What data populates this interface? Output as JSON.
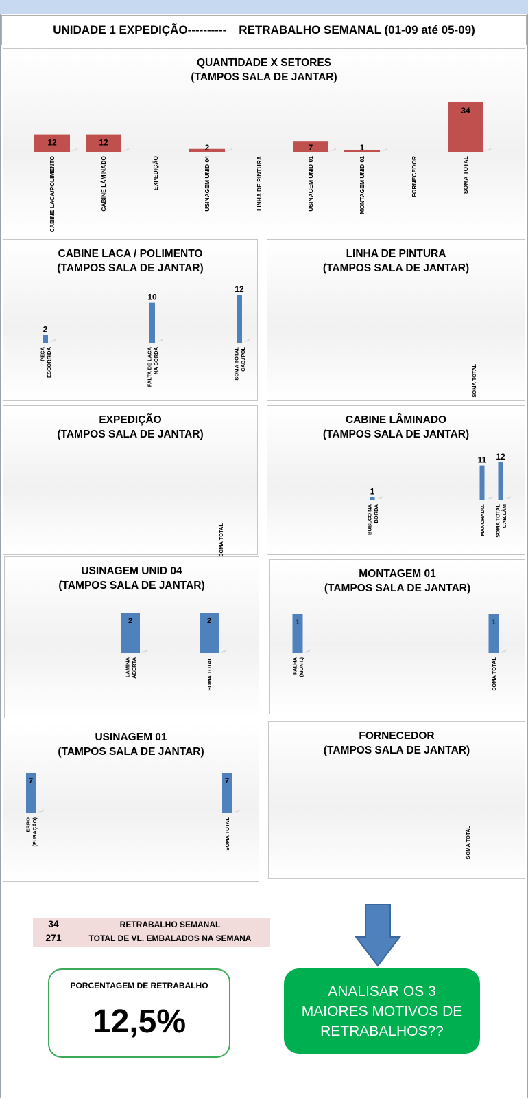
{
  "header": {
    "left": "UNIDADE 1 EXPEDIÇÃO----------",
    "right": "RETRABALHO SEMANAL (01-09 até 05-09)"
  },
  "colors": {
    "main_bars": "#c0504d",
    "sector_bars": "#4f81bd",
    "green_box": "#00b050",
    "summary_bg": "#f2dcdb"
  },
  "chart_data": [
    {
      "type": "bar",
      "title": "QUANTIDADE X SETORES",
      "subtitle": "(TAMPOS SALA DE JANTAR)",
      "categories": [
        "CABINE LACA/POLIMENTO",
        "CABINE LÂMINADO",
        "EXPEDIÇÃO",
        "USINAGEM UNID 04",
        "LINHA DE PINTURA",
        "USINAGEM UNID 01",
        "MONTAGEM UNID 01",
        "FORNECEDOR",
        "SOMA TOTAL"
      ],
      "values": [
        12,
        12,
        null,
        2,
        null,
        7,
        1,
        null,
        34
      ],
      "ylim": [
        0,
        34
      ]
    },
    {
      "type": "bar",
      "title": "CABINE LACA / POLIMENTO",
      "subtitle": "(TAMPOS SALA DE JANTAR)",
      "categories": [
        "PEÇA ESCORRIDA",
        "FALTA DE LACA NA BORDA",
        "SOMA TOTAL CAB./POL"
      ],
      "values": [
        2,
        10,
        12
      ],
      "ylim": [
        0,
        12
      ]
    },
    {
      "type": "bar",
      "title": "LINHA DE PINTURA",
      "subtitle": "(TAMPOS SALA DE JANTAR)",
      "categories": [
        "SOMA TOTAL"
      ],
      "values": [
        null
      ],
      "ylim": [
        0,
        1
      ]
    },
    {
      "type": "bar",
      "title": "EXPEDIÇÃO",
      "subtitle": "(TAMPOS SALA DE JANTAR)",
      "categories": [
        "SOMA TOTAL"
      ],
      "values": [
        null
      ],
      "ylim": [
        0,
        1
      ]
    },
    {
      "type": "bar",
      "title": "CABINE LÂMINADO",
      "subtitle": "(TAMPOS SALA DE JANTAR)",
      "categories": [
        "BUBLCO NA BORDA",
        "MANCHADO.",
        "SOMA TOTAL CAB.LÂM"
      ],
      "values": [
        1,
        11,
        12
      ],
      "ylim": [
        0,
        12
      ]
    },
    {
      "type": "bar",
      "title": "USINAGEM UNID 04",
      "subtitle": "(TAMPOS SALA DE JANTAR)",
      "categories": [
        "LAMINA ABERTA",
        "SOMA TOTAL"
      ],
      "values": [
        2,
        2
      ],
      "ylim": [
        0,
        2
      ]
    },
    {
      "type": "bar",
      "title": "MONTAGEM 01",
      "subtitle": "(TAMPOS SALA DE JANTAR)",
      "categories": [
        "FALHA (MONT.)",
        "SOMA TOTAL"
      ],
      "values": [
        1,
        1
      ],
      "ylim": [
        0,
        1
      ]
    },
    {
      "type": "bar",
      "title": "USINAGEM 01",
      "subtitle": "(TAMPOS SALA DE JANTAR)",
      "categories": [
        "ERRO (FURAÇÃO)",
        "SOMA TOTAL"
      ],
      "values": [
        7,
        7
      ],
      "ylim": [
        0,
        7
      ]
    },
    {
      "type": "bar",
      "title": "FORNECEDOR",
      "subtitle": "(TAMPOS SALA DE JANTAR)",
      "categories": [
        "SOMA TOTAL"
      ],
      "values": [
        null
      ],
      "ylim": [
        0,
        1
      ]
    }
  ],
  "summary": {
    "rows": [
      {
        "value": "34",
        "label": "RETRABALHO SEMANAL"
      },
      {
        "value": "271",
        "label": "TOTAL DE VL. EMBALADOS NA SEMANA"
      }
    ]
  },
  "percentage": {
    "label": "PORCENTAGEM DE RETRABALHO",
    "value": "12,5%"
  },
  "action": {
    "text": "ANALISAR OS 3 MAIORES MOTIVOS DE RETRABALHOS??"
  }
}
